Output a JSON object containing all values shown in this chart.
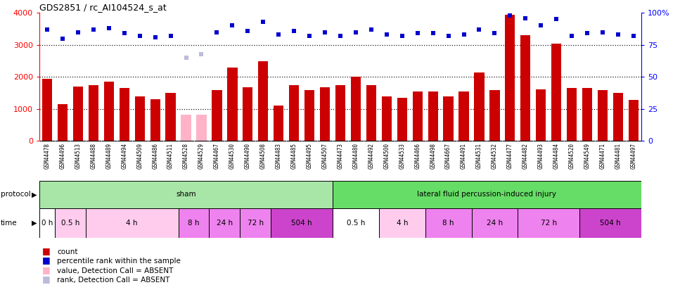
{
  "title": "GDS2851 / rc_AI104524_s_at",
  "samples": [
    "GSM44478",
    "GSM44496",
    "GSM44513",
    "GSM44488",
    "GSM44489",
    "GSM44494",
    "GSM44509",
    "GSM44486",
    "GSM44511",
    "GSM44528",
    "GSM44529",
    "GSM44467",
    "GSM44530",
    "GSM44490",
    "GSM44508",
    "GSM44483",
    "GSM44485",
    "GSM44495",
    "GSM44507",
    "GSM44473",
    "GSM44480",
    "GSM44492",
    "GSM44500",
    "GSM44533",
    "GSM44466",
    "GSM44498",
    "GSM44667",
    "GSM44491",
    "GSM44531",
    "GSM44532",
    "GSM44477",
    "GSM44482",
    "GSM44493",
    "GSM44484",
    "GSM44520",
    "GSM44549",
    "GSM44471",
    "GSM44481",
    "GSM44497"
  ],
  "bar_values": [
    1950,
    1150,
    1700,
    1750,
    1850,
    1650,
    1400,
    1300,
    1500,
    820,
    820,
    1600,
    2300,
    1680,
    2490,
    1100,
    1750,
    1600,
    1680,
    1750,
    2000,
    1750,
    1400,
    1350,
    1550,
    1550,
    1400,
    1550,
    2150,
    1600,
    3950,
    3300,
    1620,
    3050,
    1650,
    1650,
    1600,
    1500,
    1280
  ],
  "bar_absent": [
    false,
    false,
    false,
    false,
    false,
    false,
    false,
    false,
    false,
    true,
    true,
    false,
    false,
    false,
    false,
    false,
    false,
    false,
    false,
    false,
    false,
    false,
    false,
    false,
    false,
    false,
    false,
    false,
    false,
    false,
    false,
    false,
    false,
    false,
    false,
    false,
    false,
    false,
    false
  ],
  "rank_values_pct": [
    87,
    80,
    85,
    87,
    88,
    84,
    82,
    81,
    82,
    65,
    68,
    85,
    90,
    86,
    93,
    83,
    86,
    82,
    85,
    82,
    85,
    87,
    83,
    82,
    84,
    84,
    82,
    83,
    87,
    84,
    98,
    96,
    90,
    95,
    82,
    84,
    85,
    83,
    82
  ],
  "rank_absent": [
    false,
    false,
    false,
    false,
    false,
    false,
    false,
    false,
    false,
    true,
    true,
    false,
    false,
    false,
    false,
    false,
    false,
    false,
    false,
    false,
    false,
    false,
    false,
    false,
    false,
    false,
    false,
    false,
    false,
    false,
    false,
    false,
    false,
    false,
    false,
    false,
    false,
    false,
    false
  ],
  "protocol_groups": [
    {
      "label": "sham",
      "start": 0,
      "end": 19,
      "color": "#A8E6A8"
    },
    {
      "label": "lateral fluid percussion-induced injury",
      "start": 19,
      "end": 39,
      "color": "#66DD66"
    }
  ],
  "time_groups": [
    {
      "label": "0 h",
      "start": 0,
      "end": 1,
      "color": "#FFFFFF"
    },
    {
      "label": "0.5 h",
      "start": 1,
      "end": 3,
      "color": "#FFCCEE"
    },
    {
      "label": "4 h",
      "start": 3,
      "end": 9,
      "color": "#FFCCEE"
    },
    {
      "label": "8 h",
      "start": 9,
      "end": 11,
      "color": "#EE82EE"
    },
    {
      "label": "24 h",
      "start": 11,
      "end": 13,
      "color": "#EE82EE"
    },
    {
      "label": "72 h",
      "start": 13,
      "end": 15,
      "color": "#EE82EE"
    },
    {
      "label": "504 h",
      "start": 15,
      "end": 19,
      "color": "#CC44CC"
    },
    {
      "label": "0.5 h",
      "start": 19,
      "end": 22,
      "color": "#FFFFFF"
    },
    {
      "label": "4 h",
      "start": 22,
      "end": 25,
      "color": "#FFCCEE"
    },
    {
      "label": "8 h",
      "start": 25,
      "end": 28,
      "color": "#EE82EE"
    },
    {
      "label": "24 h",
      "start": 28,
      "end": 31,
      "color": "#EE82EE"
    },
    {
      "label": "72 h",
      "start": 31,
      "end": 35,
      "color": "#EE82EE"
    },
    {
      "label": "504 h",
      "start": 35,
      "end": 39,
      "color": "#CC44CC"
    }
  ],
  "y_max": 4000,
  "y_ticks": [
    0,
    1000,
    2000,
    3000,
    4000
  ],
  "right_y_ticks_pct": [
    0,
    25,
    50,
    75,
    100
  ],
  "right_y_labels": [
    "0",
    "25",
    "50",
    "75",
    "100%"
  ],
  "dotted_lines": [
    1000,
    2000,
    3000
  ],
  "red_bar_color": "#CC0000",
  "pink_bar_color": "#FFB3C8",
  "blue_dot_color": "#0000CC",
  "lavender_dot_color": "#BBBBDD",
  "ticklabel_bg": "#CCCCCC"
}
